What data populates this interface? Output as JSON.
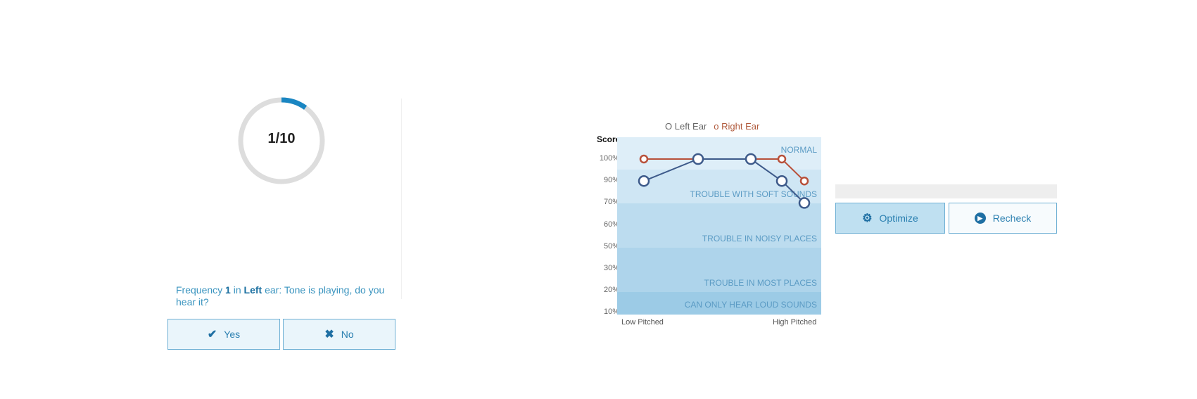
{
  "test": {
    "progress_current": 1,
    "progress_total": 10,
    "progress_label": "1/10",
    "question_prefix": "Frequency ",
    "frequency": "1",
    "question_mid": " in ",
    "ear": "Left",
    "question_suffix": " ear: Tone is playing, do you hear it?",
    "yes_label": "Yes",
    "no_label": "No",
    "yes_icon": "check-icon",
    "no_icon": "x-icon",
    "accent": "#1a86c2"
  },
  "chart_data": {
    "type": "line",
    "ylabel": "Score",
    "yticks": [
      "100%",
      "90%",
      "70%",
      "60%",
      "50%",
      "30%",
      "20%",
      "10%"
    ],
    "xlabels": [
      "Low Pitched",
      "High Pitched"
    ],
    "bands": [
      "NORMAL",
      "TROUBLE WITH SOFT SOUNDS",
      "TROUBLE IN NOISY PLACES",
      "TROUBLE IN MOST PLACES",
      "CAN ONLY HEAR LOUD SOUNDS"
    ],
    "legend": [
      "Left Ear",
      "Right Ear"
    ],
    "series": [
      {
        "name": "Left Ear",
        "color": "#3d5a8a",
        "values": [
          "90%",
          "100%",
          "100%",
          "90%",
          "70%"
        ]
      },
      {
        "name": "Right Ear",
        "color": "#b8503a",
        "values": [
          "100%",
          "100%",
          "100%",
          "100%",
          "90%"
        ]
      }
    ]
  },
  "actions": {
    "optimize_label": "Optimize",
    "recheck_label": "Recheck",
    "optimize_icon": "gear-icon",
    "recheck_icon": "play-icon"
  }
}
